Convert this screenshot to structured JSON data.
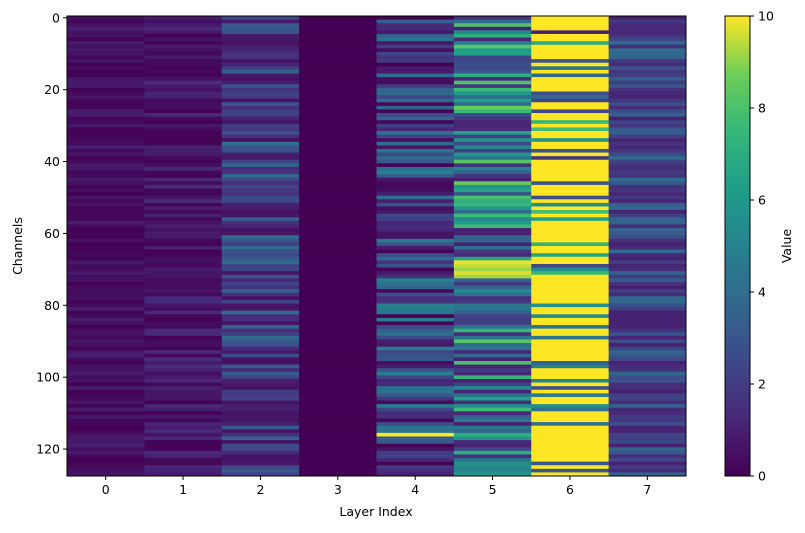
{
  "chart_data": {
    "type": "heatmap",
    "xlabel": "Layer Index",
    "ylabel": "Channels",
    "x_ticks": [
      "0",
      "1",
      "2",
      "3",
      "4",
      "5",
      "6",
      "7"
    ],
    "y_ticks": [
      "0",
      "20",
      "40",
      "60",
      "80",
      "100",
      "120"
    ],
    "colorbar": {
      "label": "Value",
      "range": [
        0,
        10
      ],
      "ticks": [
        "0",
        "2",
        "4",
        "6",
        "8",
        "10"
      ],
      "colormap": "viridis"
    },
    "rows": 128,
    "columns": 8,
    "column_profiles": [
      {
        "layer": 0,
        "typical_range": [
          0,
          1
        ],
        "note": "mostly near 0"
      },
      {
        "layer": 1,
        "typical_range": [
          0,
          1.5
        ]
      },
      {
        "layer": 2,
        "typical_range": [
          0.5,
          4
        ]
      },
      {
        "layer": 3,
        "typical_range": [
          0,
          0
        ],
        "note": "all 0"
      },
      {
        "layer": 4,
        "typical_range": [
          0,
          5
        ],
        "note": "bright row near channel 116"
      },
      {
        "layer": 5,
        "typical_range": [
          1,
          9
        ],
        "note": "yellow bands near channels 68-72"
      },
      {
        "layer": 6,
        "typical_range": [
          0,
          10
        ],
        "note": "mostly saturated yellow"
      },
      {
        "layer": 7,
        "typical_range": [
          1,
          4
        ]
      }
    ]
  }
}
